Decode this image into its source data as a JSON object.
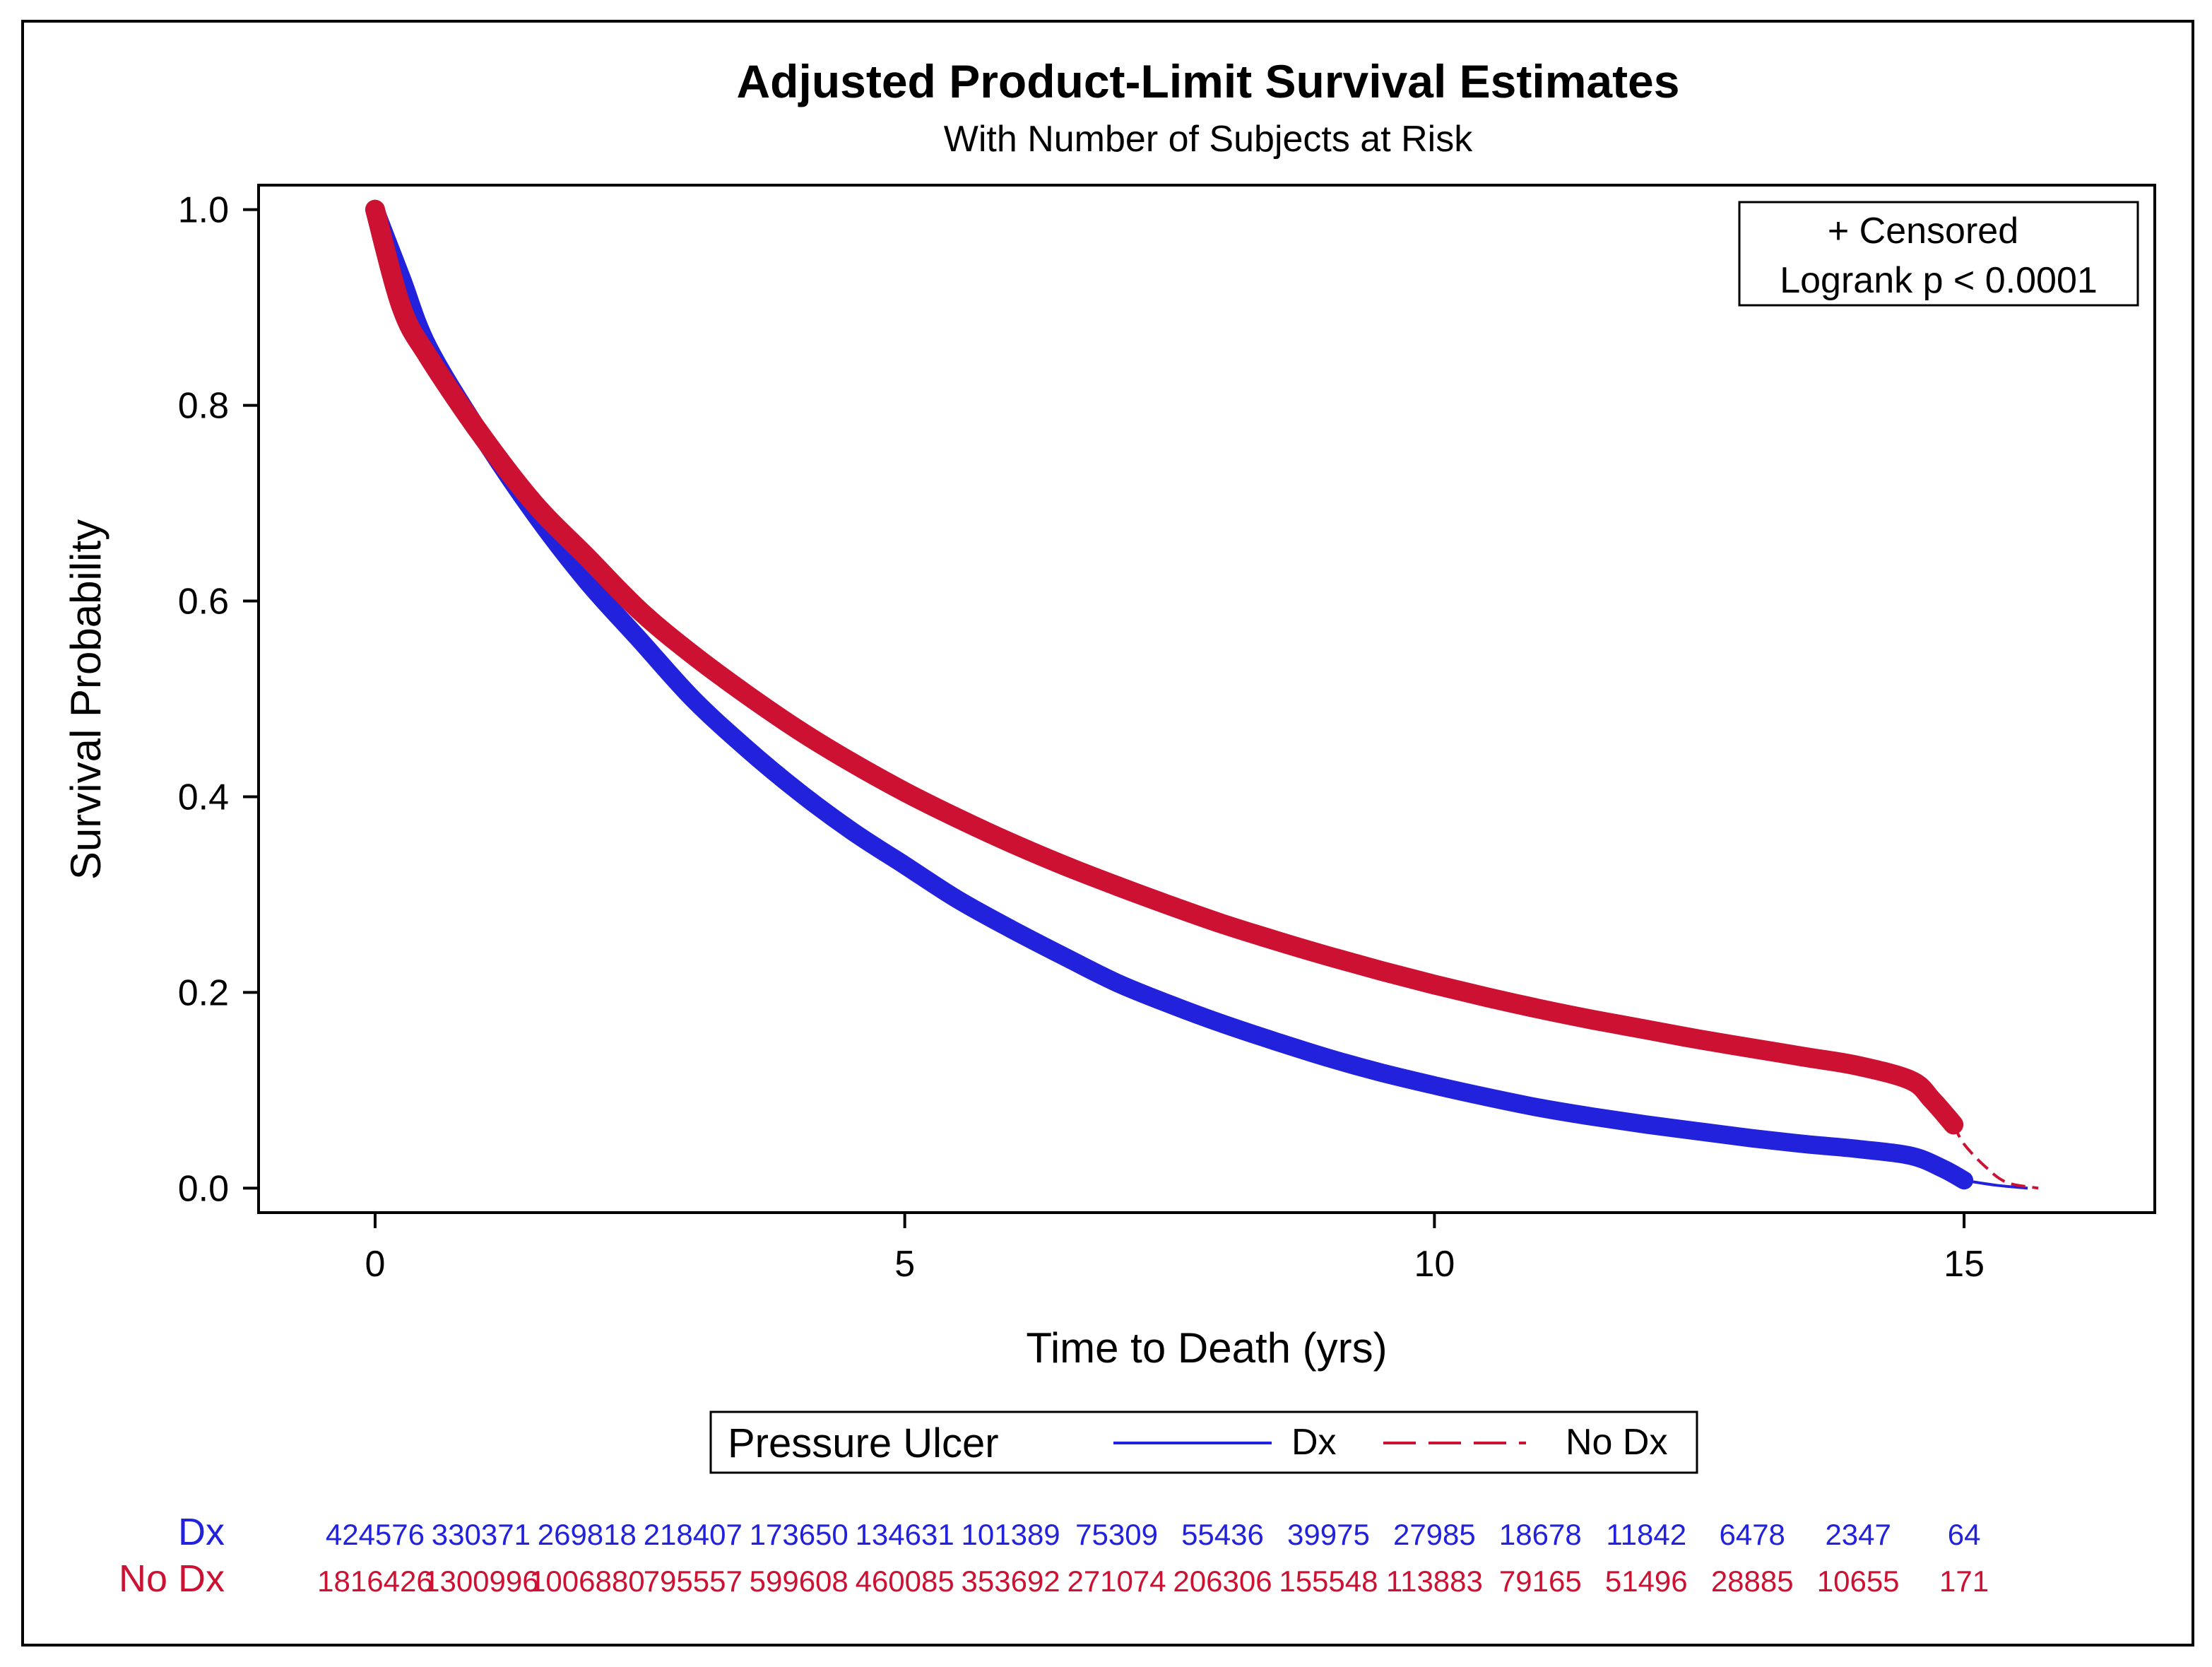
{
  "chart_data": {
    "type": "line",
    "title": "Adjusted Product-Limit Survival Estimates",
    "subtitle": "With Number of Subjects at Risk",
    "xlabel": "Time to Death (yrs)",
    "ylabel": "Survival Probability",
    "xlim": [
      -1.1,
      16.8
    ],
    "ylim": [
      -0.025,
      1.025
    ],
    "x_ticks": [
      0,
      5,
      10,
      15
    ],
    "x_tick_labels": [
      "0",
      "5",
      "10",
      "15"
    ],
    "y_ticks": [
      0.0,
      0.2,
      0.4,
      0.6,
      0.8,
      1.0
    ],
    "y_tick_labels": [
      "0.0",
      "0.2",
      "0.4",
      "0.6",
      "0.8",
      "1.0"
    ],
    "grid": false,
    "inset": {
      "line1": "+ Censored",
      "line2": "Logrank p < 0.0001"
    },
    "legend": {
      "title": "Pressure Ulcer",
      "entries": [
        {
          "label": "Dx",
          "color": "#2222dd",
          "style": "solid"
        },
        {
          "label": "No Dx",
          "color": "#cc1133",
          "style": "dashed"
        }
      ]
    },
    "series": [
      {
        "name": "Dx",
        "color": "#2222dd",
        "x": [
          0,
          0.25,
          0.5,
          1,
          1.5,
          2,
          2.5,
          3,
          3.5,
          4,
          4.5,
          5,
          5.5,
          6,
          6.5,
          7,
          7.5,
          8,
          8.5,
          9,
          9.5,
          10,
          10.5,
          11,
          11.5,
          12,
          12.5,
          13,
          13.5,
          14,
          14.5,
          14.8,
          15,
          15.3,
          15.6
        ],
        "y": [
          1.0,
          0.93,
          0.86,
          0.77,
          0.69,
          0.62,
          0.56,
          0.5,
          0.45,
          0.405,
          0.365,
          0.33,
          0.295,
          0.265,
          0.237,
          0.21,
          0.188,
          0.168,
          0.15,
          0.133,
          0.118,
          0.105,
          0.093,
          0.082,
          0.073,
          0.065,
          0.058,
          0.051,
          0.045,
          0.04,
          0.033,
          0.02,
          0.008,
          0.003,
          0.0
        ]
      },
      {
        "name": "No Dx",
        "color": "#cc1133",
        "x": [
          0,
          0.25,
          0.5,
          1,
          1.5,
          2,
          2.5,
          3,
          3.5,
          4,
          4.5,
          5,
          5.5,
          6,
          6.5,
          7,
          7.5,
          8,
          8.5,
          9,
          9.5,
          10,
          10.5,
          11,
          11.5,
          12,
          12.5,
          13,
          13.5,
          14,
          14.5,
          14.7,
          14.9,
          15,
          15.2,
          15.4,
          15.7
        ],
        "y": [
          1.0,
          0.9,
          0.85,
          0.77,
          0.7,
          0.645,
          0.59,
          0.545,
          0.505,
          0.468,
          0.435,
          0.405,
          0.378,
          0.353,
          0.33,
          0.309,
          0.289,
          0.27,
          0.253,
          0.237,
          0.222,
          0.208,
          0.195,
          0.183,
          0.172,
          0.162,
          0.152,
          0.143,
          0.134,
          0.125,
          0.11,
          0.09,
          0.065,
          0.045,
          0.022,
          0.006,
          0.0
        ]
      }
    ],
    "at_risk": {
      "times": [
        0,
        1,
        2,
        3,
        4,
        5,
        6,
        7,
        8,
        9,
        10,
        11,
        12,
        13,
        14,
        15
      ],
      "rows": [
        {
          "label": "Dx",
          "color": "#2222dd",
          "values": [
            "424576",
            "330371",
            "269818",
            "218407",
            "173650",
            "134631",
            "101389",
            "75309",
            "55436",
            "39975",
            "27985",
            "18678",
            "11842",
            "6478",
            "2347",
            "64"
          ]
        },
        {
          "label": "No Dx",
          "color": "#cc1133",
          "values": [
            "1816426",
            "1300996",
            "1006880",
            "795557",
            "599608",
            "460085",
            "353692",
            "271074",
            "206306",
            "155548",
            "113883",
            "79165",
            "51496",
            "28885",
            "10655",
            "171"
          ]
        }
      ]
    }
  }
}
